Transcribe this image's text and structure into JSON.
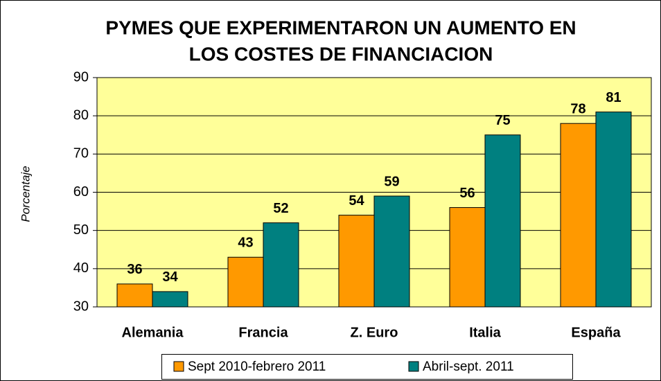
{
  "chart_data": {
    "type": "bar",
    "title": [
      "PYMES QUE EXPERIMENTARON UN AUMENTO EN",
      "LOS COSTES DE FINANCIACION"
    ],
    "y_label": "Porcentaje",
    "categories": [
      "Alemania",
      "Francia",
      "Z. Euro",
      "Italia",
      "España"
    ],
    "series": [
      {
        "name": "Sept 2010-febrero 2011",
        "color": "#ff9900",
        "values": [
          36,
          43,
          54,
          56,
          78
        ]
      },
      {
        "name": "Abril-sept. 2011",
        "color": "#008080",
        "values": [
          34,
          52,
          59,
          75,
          81
        ]
      }
    ],
    "ylim": [
      30,
      90
    ],
    "yticks": [
      30,
      40,
      50,
      60,
      70,
      80,
      90
    ],
    "grid": true,
    "legend": "bottom"
  }
}
